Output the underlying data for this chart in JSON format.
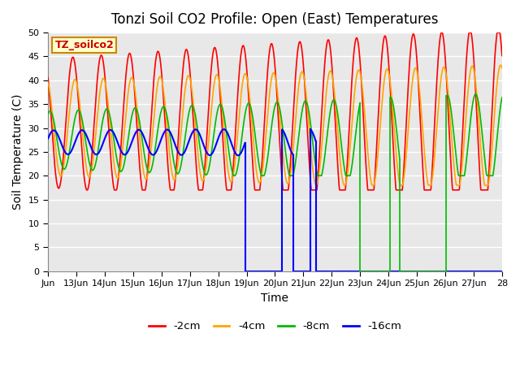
{
  "title": "Tonzi Soil CO2 Profile: Open (East) Temperatures",
  "xlabel": "Time",
  "ylabel": "Soil Temperature (C)",
  "ylim": [
    0,
    50
  ],
  "xlim": [
    0,
    16
  ],
  "x_tick_labels": [
    "Jun",
    "13Jun",
    "14Jun",
    "15Jun",
    "16Jun",
    "17Jun",
    "18Jun",
    "19Jun",
    "20Jun",
    "21Jun",
    "22Jun",
    "23Jun",
    "24Jun",
    "25Jun",
    "26Jun",
    "27Jun",
    "28"
  ],
  "legend_label": "TZ_soilco2",
  "series_labels": [
    "-2cm",
    "-4cm",
    "-8cm",
    "-16cm"
  ],
  "series_colors": [
    "#ff0000",
    "#ffa500",
    "#00bb00",
    "#0000ff"
  ],
  "bg_color": "#e8e8e8",
  "grid_color": "#ffffff",
  "title_fontsize": 12,
  "axis_fontsize": 10,
  "tick_fontsize": 8
}
